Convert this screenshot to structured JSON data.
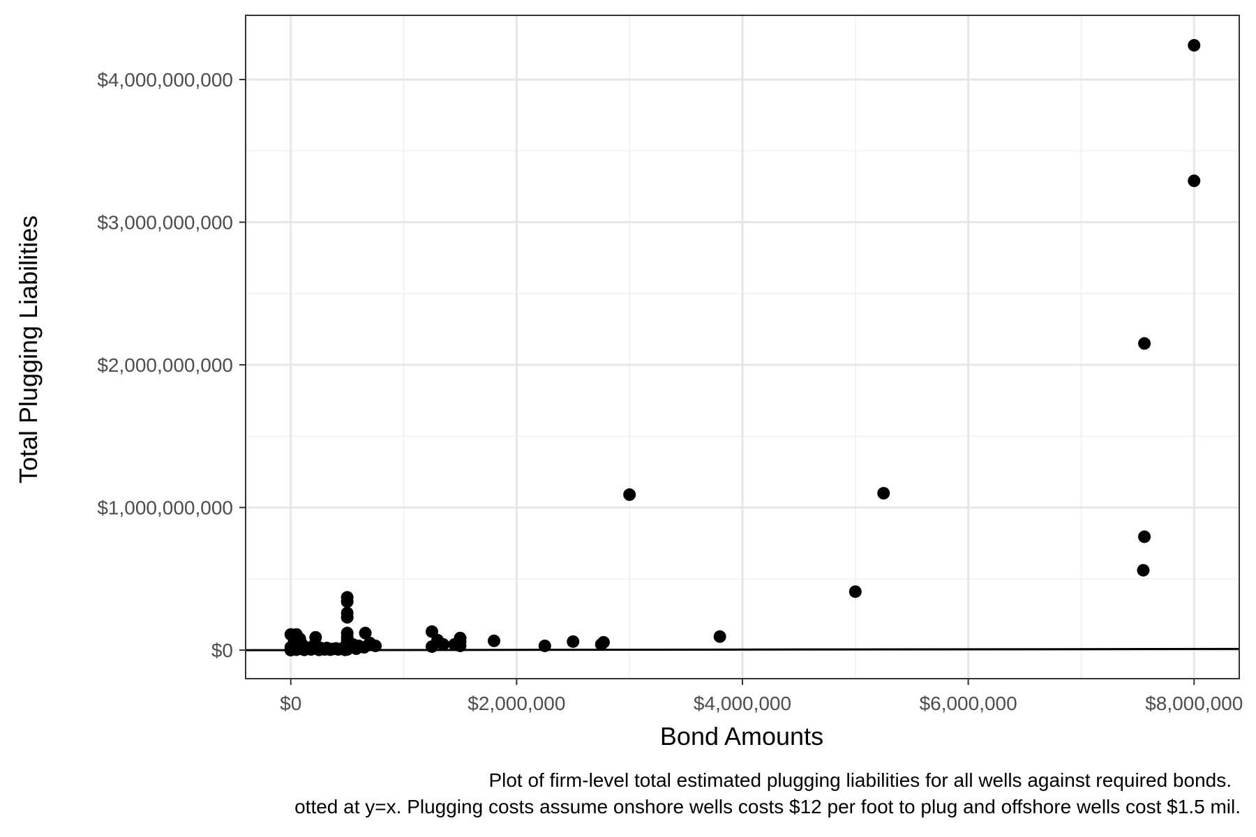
{
  "chart_data": {
    "type": "scatter",
    "xlabel": "Bond Amounts",
    "ylabel": "Total Plugging Liabilities",
    "xlim": [
      -400000,
      8400000
    ],
    "ylim": [
      -200000000,
      4450000000
    ],
    "x_ticks": [
      0,
      2000000,
      4000000,
      6000000,
      8000000
    ],
    "x_tick_labels": [
      "$0",
      "$2,000,000",
      "$4,000,000",
      "$6,000,000",
      "$8,000,000"
    ],
    "y_ticks": [
      0,
      1000000000,
      2000000000,
      3000000000,
      4000000000
    ],
    "y_tick_labels": [
      "$0",
      "$1,000,000,000",
      "$2,000,000,000",
      "$3,000,000,000",
      "$4,000,000,000"
    ],
    "grid": true,
    "reference_line": "y = x",
    "caption_lines": [
      "Plot of firm-level total estimated plugging liabilities for all wells against required bonds.",
      "otted at y=x. Plugging costs assume onshore wells costs $12 per foot to plug and offshore wells cost $1.5 mil."
    ],
    "points": [
      {
        "x": 0,
        "y": 0
      },
      {
        "x": 0,
        "y": 5000000
      },
      {
        "x": 0,
        "y": 20000000
      },
      {
        "x": 0,
        "y": 110000000
      },
      {
        "x": 20000,
        "y": 10000000
      },
      {
        "x": 30000,
        "y": 60000000
      },
      {
        "x": 50000,
        "y": 3000000
      },
      {
        "x": 50000,
        "y": 110000000
      },
      {
        "x": 60000,
        "y": 30000000
      },
      {
        "x": 80000,
        "y": 80000000
      },
      {
        "x": 100000,
        "y": 8000000
      },
      {
        "x": 100000,
        "y": 40000000
      },
      {
        "x": 120000,
        "y": 2000000
      },
      {
        "x": 150000,
        "y": 15000000
      },
      {
        "x": 180000,
        "y": 5000000
      },
      {
        "x": 200000,
        "y": 30000000
      },
      {
        "x": 220000,
        "y": 90000000
      },
      {
        "x": 250000,
        "y": 2000000
      },
      {
        "x": 250000,
        "y": 20000000
      },
      {
        "x": 280000,
        "y": 10000000
      },
      {
        "x": 300000,
        "y": 5000000
      },
      {
        "x": 320000,
        "y": 15000000
      },
      {
        "x": 350000,
        "y": 3000000
      },
      {
        "x": 370000,
        "y": 8000000
      },
      {
        "x": 400000,
        "y": 12000000
      },
      {
        "x": 420000,
        "y": 5000000
      },
      {
        "x": 450000,
        "y": 10000000
      },
      {
        "x": 480000,
        "y": 2000000
      },
      {
        "x": 500000,
        "y": 5000000
      },
      {
        "x": 500000,
        "y": 15000000
      },
      {
        "x": 500000,
        "y": 30000000
      },
      {
        "x": 500000,
        "y": 50000000
      },
      {
        "x": 500000,
        "y": 70000000
      },
      {
        "x": 500000,
        "y": 90000000
      },
      {
        "x": 500000,
        "y": 120000000
      },
      {
        "x": 500000,
        "y": 230000000
      },
      {
        "x": 500000,
        "y": 260000000
      },
      {
        "x": 500000,
        "y": 340000000
      },
      {
        "x": 500000,
        "y": 370000000
      },
      {
        "x": 520000,
        "y": 20000000
      },
      {
        "x": 550000,
        "y": 40000000
      },
      {
        "x": 580000,
        "y": 10000000
      },
      {
        "x": 600000,
        "y": 30000000
      },
      {
        "x": 650000,
        "y": 20000000
      },
      {
        "x": 660000,
        "y": 120000000
      },
      {
        "x": 700000,
        "y": 50000000
      },
      {
        "x": 750000,
        "y": 30000000
      },
      {
        "x": 1250000,
        "y": 25000000
      },
      {
        "x": 1250000,
        "y": 130000000
      },
      {
        "x": 1300000,
        "y": 70000000
      },
      {
        "x": 1350000,
        "y": 40000000
      },
      {
        "x": 1450000,
        "y": 40000000
      },
      {
        "x": 1500000,
        "y": 30000000
      },
      {
        "x": 1500000,
        "y": 60000000
      },
      {
        "x": 1500000,
        "y": 85000000
      },
      {
        "x": 1800000,
        "y": 65000000
      },
      {
        "x": 2250000,
        "y": 30000000
      },
      {
        "x": 2500000,
        "y": 60000000
      },
      {
        "x": 2750000,
        "y": 40000000
      },
      {
        "x": 2770000,
        "y": 55000000
      },
      {
        "x": 3000000,
        "y": 1090000000
      },
      {
        "x": 3800000,
        "y": 95000000
      },
      {
        "x": 5000000,
        "y": 410000000
      },
      {
        "x": 5250000,
        "y": 1100000000
      },
      {
        "x": 7550000,
        "y": 560000000
      },
      {
        "x": 7560000,
        "y": 795000000
      },
      {
        "x": 7560000,
        "y": 2150000000
      },
      {
        "x": 8000000,
        "y": 3290000000
      },
      {
        "x": 8000000,
        "y": 4240000000
      }
    ]
  }
}
